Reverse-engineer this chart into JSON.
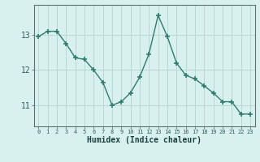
{
  "xlabel": "Humidex (Indice chaleur)",
  "ylabel": "",
  "x_values": [
    0,
    1,
    2,
    3,
    4,
    5,
    6,
    7,
    8,
    9,
    10,
    11,
    12,
    13,
    14,
    15,
    16,
    17,
    18,
    19,
    20,
    21,
    22,
    23
  ],
  "y_values": [
    12.95,
    13.1,
    13.1,
    12.75,
    12.35,
    12.3,
    12.0,
    11.65,
    11.0,
    11.1,
    11.35,
    11.8,
    12.45,
    13.55,
    12.95,
    12.2,
    11.85,
    11.75,
    11.55,
    11.35,
    11.1,
    11.1,
    10.75,
    10.75
  ],
  "line_color": "#2e7d6e",
  "marker": "+",
  "marker_size": 5,
  "bg_color": "#d8f0ee",
  "grid_color": "#b8d8d4",
  "axis_color": "#607070",
  "tick_label_color": "#2e5f5f",
  "xlabel_color": "#1a4040",
  "ylim": [
    10.4,
    13.85
  ],
  "yticks": [
    11,
    12,
    13
  ],
  "xlim": [
    -0.5,
    23.5
  ]
}
